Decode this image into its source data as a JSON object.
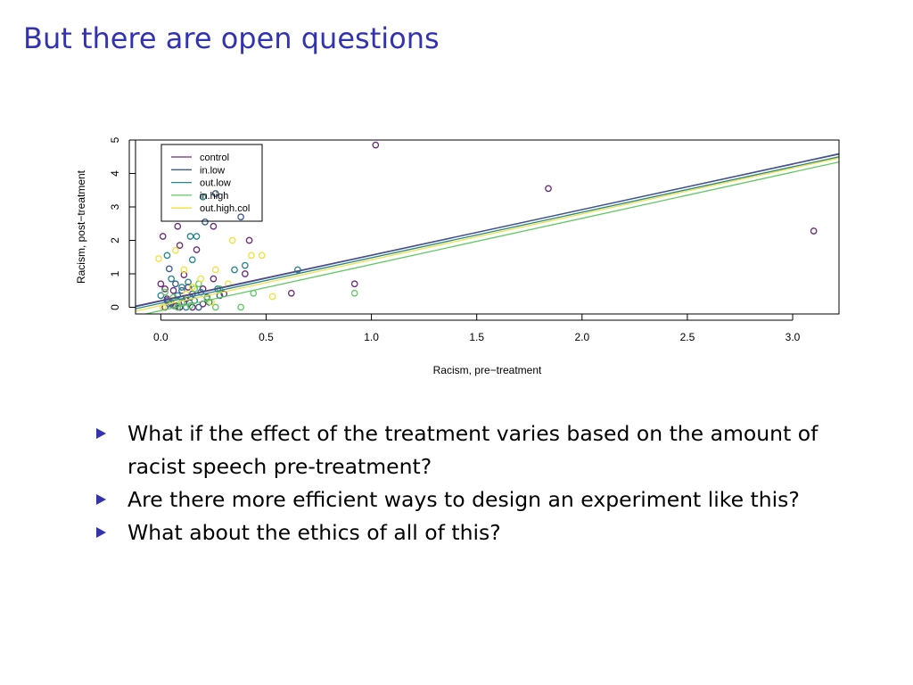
{
  "slide": {
    "title": "But there are open questions",
    "bullets": [
      "What if the effect of the treatment varies based on the amount of racist speech pre-treatment?",
      "Are there more efficient ways to design an experiment like this?",
      "What about the ethics of all of this?"
    ],
    "bullet_color": "#3333b2",
    "title_color": "#3333b2"
  },
  "chart_data": {
    "type": "scatter",
    "title": "",
    "xlabel": "Racism, pre−treatment",
    "ylabel": "Racism, post−treatment",
    "xlim": [
      -0.12,
      3.22
    ],
    "ylim": [
      -0.2,
      5.0
    ],
    "xticks": [
      "0.0",
      "0.5",
      "1.0",
      "1.5",
      "2.0",
      "2.5",
      "3.0"
    ],
    "xtick_values": [
      0,
      0.5,
      1.0,
      1.5,
      2.0,
      2.5,
      3.0
    ],
    "yticks": [
      "0",
      "1",
      "2",
      "3",
      "4",
      "5"
    ],
    "ytick_values": [
      0,
      1,
      2,
      3,
      4,
      5
    ],
    "legend_position": "top-left",
    "series": [
      {
        "name": "control",
        "color": "#6a2a7a",
        "line": {
          "intercept": 0.2,
          "slope": 1.36
        },
        "points": [
          [
            1.02,
            4.85
          ],
          [
            1.84,
            3.55
          ],
          [
            3.1,
            2.28
          ],
          [
            0.01,
            2.12
          ],
          [
            0.08,
            2.42
          ],
          [
            0.25,
            2.42
          ],
          [
            0.42,
            2.0
          ],
          [
            0.09,
            1.85
          ],
          [
            0.17,
            1.72
          ],
          [
            0.11,
            0.97
          ],
          [
            0.25,
            0.85
          ],
          [
            0.02,
            0.55
          ],
          [
            0.06,
            0.5
          ],
          [
            0.13,
            0.6
          ],
          [
            0.2,
            0.55
          ],
          [
            0.3,
            0.4
          ],
          [
            0.4,
            1.0
          ],
          [
            0.62,
            0.42
          ],
          [
            0.92,
            0.7
          ],
          [
            0.03,
            0.25
          ],
          [
            0.05,
            0.12
          ],
          [
            0.07,
            0.05
          ],
          [
            0.09,
            0.0
          ],
          [
            0.11,
            0.15
          ],
          [
            0.15,
            0.0
          ],
          [
            0.2,
            0.1
          ],
          [
            0.0,
            0.7
          ],
          [
            0.14,
            0.3
          ],
          [
            0.02,
            0.0
          ]
        ]
      },
      {
        "name": "in.low",
        "color": "#3a5a92",
        "line": {
          "intercept": 0.18,
          "slope": 1.37
        },
        "points": [
          [
            0.26,
            3.4
          ],
          [
            0.38,
            2.7
          ],
          [
            0.21,
            2.55
          ],
          [
            0.04,
            1.15
          ],
          [
            0.07,
            0.7
          ],
          [
            0.1,
            0.5
          ],
          [
            0.15,
            0.4
          ],
          [
            0.03,
            0.2
          ],
          [
            0.06,
            0.05
          ],
          [
            0.08,
            0.0
          ],
          [
            0.12,
            0.25
          ],
          [
            0.18,
            0.0
          ],
          [
            0.22,
            0.3
          ],
          [
            0.28,
            0.35
          ]
        ]
      },
      {
        "name": "out.low",
        "color": "#25858e",
        "line": {
          "intercept": 0.12,
          "slope": 1.36
        },
        "points": [
          [
            0.2,
            3.3
          ],
          [
            0.14,
            2.12
          ],
          [
            0.17,
            2.12
          ],
          [
            0.03,
            1.55
          ],
          [
            0.15,
            1.42
          ],
          [
            0.35,
            1.12
          ],
          [
            0.4,
            1.25
          ],
          [
            0.65,
            1.12
          ],
          [
            0.0,
            0.35
          ],
          [
            0.05,
            0.85
          ],
          [
            0.1,
            0.6
          ],
          [
            0.13,
            0.75
          ],
          [
            0.16,
            0.2
          ],
          [
            0.19,
            0.45
          ],
          [
            0.23,
            0.15
          ],
          [
            0.27,
            0.55
          ],
          [
            0.04,
            0.1
          ],
          [
            0.08,
            0.35
          ],
          [
            0.12,
            0.0
          ]
        ]
      },
      {
        "name": "in.high",
        "color": "#5ec962",
        "line": {
          "intercept": -0.1,
          "slope": 1.38
        },
        "points": [
          [
            0.92,
            0.42
          ],
          [
            0.44,
            0.42
          ],
          [
            0.28,
            0.55
          ],
          [
            0.38,
            0.0
          ],
          [
            0.06,
            0.3
          ],
          [
            0.1,
            0.15
          ],
          [
            0.14,
            0.05
          ],
          [
            0.02,
            0.45
          ],
          [
            0.18,
            0.7
          ],
          [
            0.22,
            0.25
          ],
          [
            0.08,
            0.0
          ],
          [
            0.16,
            0.55
          ],
          [
            0.26,
            0.0
          ]
        ]
      },
      {
        "name": "out.high.col",
        "color": "#f2e13a",
        "line": {
          "intercept": 0.05,
          "slope": 1.37
        },
        "points": [
          [
            0.34,
            2.0
          ],
          [
            0.48,
            1.55
          ],
          [
            0.43,
            1.55
          ],
          [
            -0.01,
            1.45
          ],
          [
            0.07,
            1.7
          ],
          [
            0.11,
            1.12
          ],
          [
            0.26,
            1.12
          ],
          [
            0.32,
            0.7
          ],
          [
            0.53,
            0.32
          ],
          [
            0.19,
            0.85
          ],
          [
            0.15,
            0.6
          ],
          [
            0.05,
            0.2
          ],
          [
            0.12,
            0.4
          ],
          [
            0.01,
            0.0
          ],
          [
            0.24,
            0.15
          ]
        ]
      }
    ]
  }
}
